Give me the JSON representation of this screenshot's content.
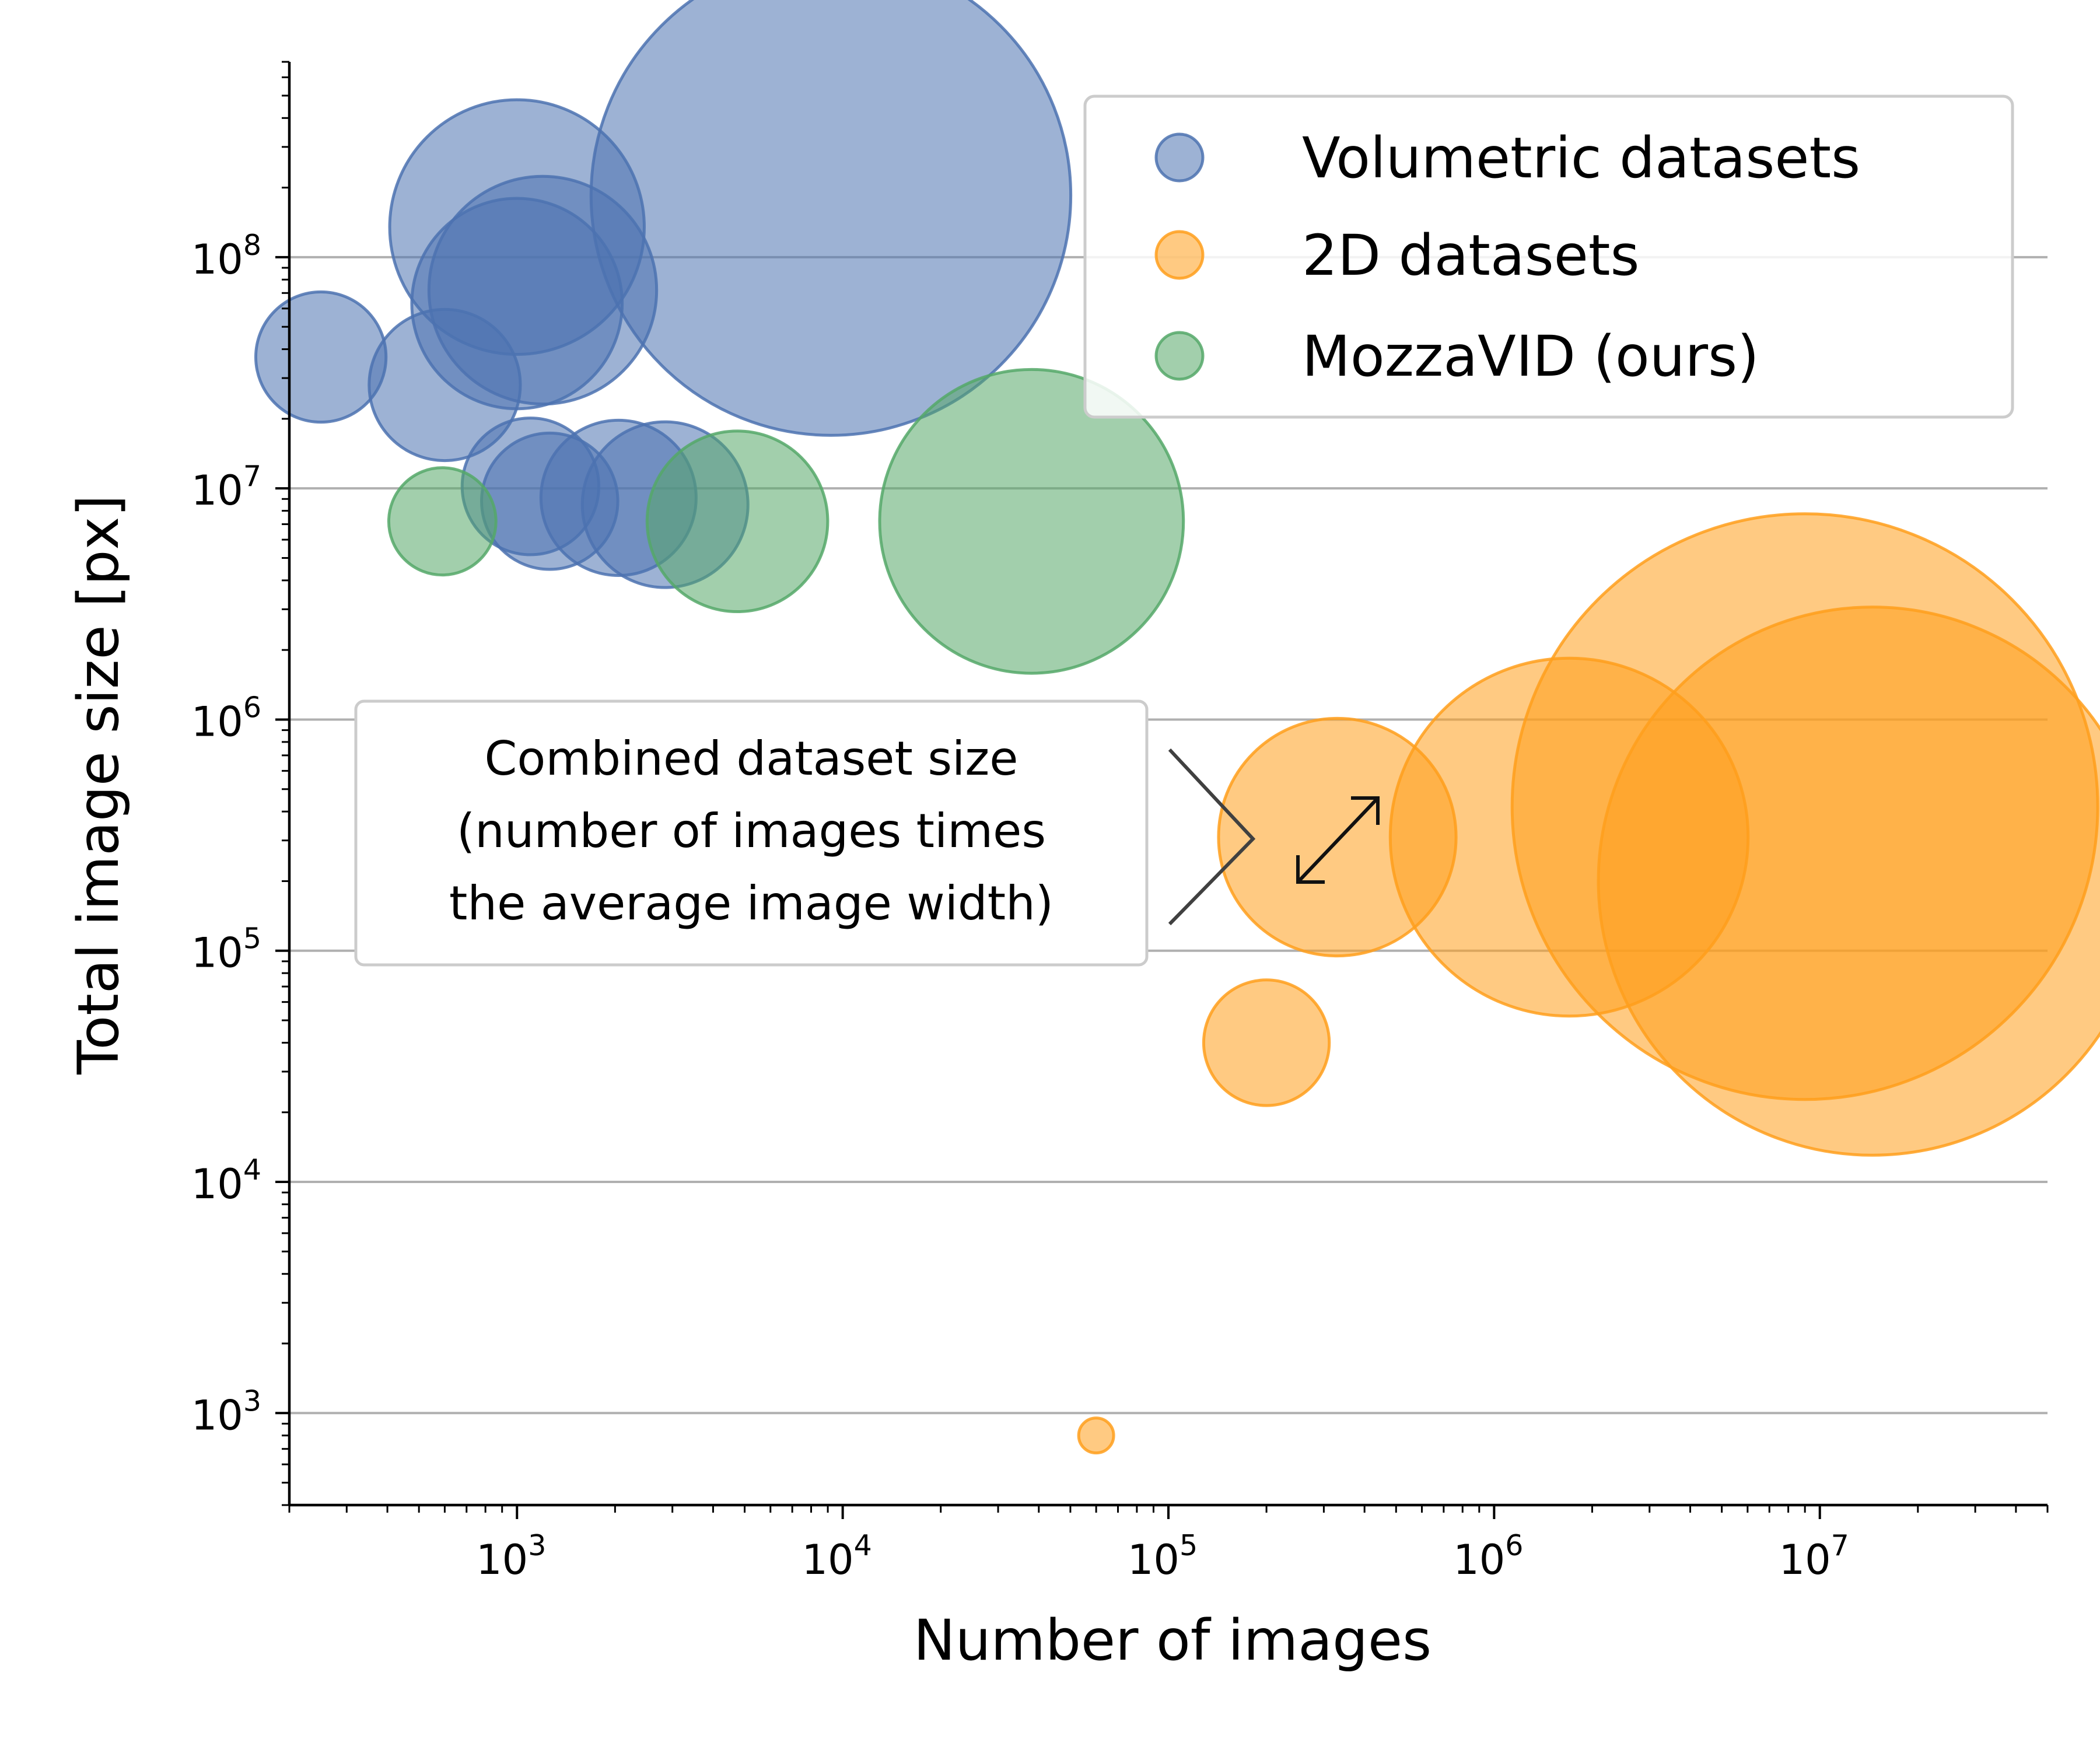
{
  "chart_data": {
    "type": "scatter",
    "title": "",
    "xlabel": "Number of images",
    "ylabel": "Total image size [px]",
    "xscale": "log",
    "yscale": "log",
    "xlim": [
      200,
      50000000
    ],
    "ylim": [
      400,
      700000000
    ],
    "grid": "horizontal major only",
    "legend_position": "top-right",
    "x_ticks": [
      {
        "base": "10",
        "exp": "3",
        "value": 1000
      },
      {
        "base": "10",
        "exp": "4",
        "value": 10000
      },
      {
        "base": "10",
        "exp": "5",
        "value": 100000
      },
      {
        "base": "10",
        "exp": "6",
        "value": 1000000
      },
      {
        "base": "10",
        "exp": "7",
        "value": 10000000
      }
    ],
    "y_ticks": [
      {
        "base": "10",
        "exp": "3",
        "value": 1000
      },
      {
        "base": "10",
        "exp": "4",
        "value": 10000
      },
      {
        "base": "10",
        "exp": "5",
        "value": 100000
      },
      {
        "base": "10",
        "exp": "6",
        "value": 1000000
      },
      {
        "base": "10",
        "exp": "7",
        "value": 10000000
      },
      {
        "base": "10",
        "exp": "8",
        "value": 100000000
      }
    ],
    "series": [
      {
        "name": "Volumetric datasets",
        "color": "#4c72b0",
        "points": [
          {
            "x": 250,
            "y": 37000000
          },
          {
            "x": 600,
            "y": 28000000
          },
          {
            "x": 1000,
            "y": 135000000
          },
          {
            "x": 1000,
            "y": 63000000
          },
          {
            "x": 1200,
            "y": 72000000
          },
          {
            "x": 1100,
            "y": 10200000
          },
          {
            "x": 1260,
            "y": 8800000
          },
          {
            "x": 2050,
            "y": 9100000
          },
          {
            "x": 2850,
            "y": 8500000
          },
          {
            "x": 9200,
            "y": 185000000
          }
        ]
      },
      {
        "name": "2D datasets",
        "color": "#ff9f1c",
        "points": [
          {
            "x": 60000,
            "y": 800
          },
          {
            "x": 200000,
            "y": 40000
          },
          {
            "x": 330000,
            "y": 310000
          },
          {
            "x": 1700000,
            "y": 310000
          },
          {
            "x": 9000000,
            "y": 420000
          },
          {
            "x": 14500000,
            "y": 200000
          }
        ]
      },
      {
        "name": "MozzaVID (ours)",
        "color": "#55a868",
        "points": [
          {
            "x": 590,
            "y": 7200000
          },
          {
            "x": 4750,
            "y": 7200000
          },
          {
            "x": 38000,
            "y": 7200000
          }
        ]
      }
    ],
    "annotation": {
      "lines": [
        "Combined dataset size",
        "(number of images times",
        "the average image width)"
      ]
    }
  }
}
